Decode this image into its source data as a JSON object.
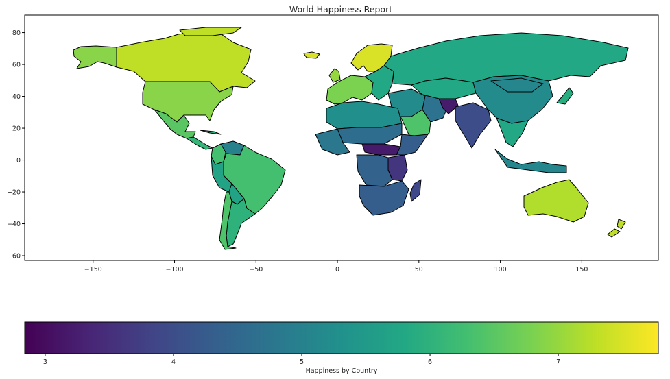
{
  "title": "World Happiness Report",
  "map": {
    "x_ticks": [
      -150,
      -100,
      -50,
      0,
      50,
      100,
      150
    ],
    "x_tick_labels": [
      "−150",
      "−100",
      "−50",
      "0",
      "50",
      "100",
      "150"
    ],
    "y_ticks": [
      80,
      60,
      40,
      20,
      0,
      -20,
      -40,
      -60
    ],
    "y_tick_labels": [
      "80",
      "60",
      "40",
      "20",
      "0",
      "−20",
      "−40",
      "−60"
    ],
    "xlim": [
      -192,
      197
    ],
    "ylim": [
      -63,
      91
    ]
  },
  "colorbar": {
    "label": "Happiness by Country",
    "colormap": "viridis",
    "range": [
      2.84,
      7.78
    ],
    "ticks": [
      3,
      4,
      5,
      6,
      7
    ],
    "tick_labels": [
      "3",
      "4",
      "5",
      "6",
      "7"
    ]
  },
  "regions": [
    {
      "id": "alaska",
      "value": 6.9
    },
    {
      "id": "canada",
      "value": 7.3
    },
    {
      "id": "greenland",
      "value": 7.4
    },
    {
      "id": "iceland",
      "value": 7.5
    },
    {
      "id": "usa",
      "value": 6.9
    },
    {
      "id": "mexico",
      "value": 6.5
    },
    {
      "id": "cuba",
      "value": 6.0
    },
    {
      "id": "central-america",
      "value": 6.1
    },
    {
      "id": "colombia",
      "value": 6.3
    },
    {
      "id": "venezuela",
      "value": 5.0
    },
    {
      "id": "brazil",
      "value": 6.3
    },
    {
      "id": "peru",
      "value": 5.7
    },
    {
      "id": "bolivia",
      "value": 5.7
    },
    {
      "id": "argentina",
      "value": 6.0
    },
    {
      "id": "chile",
      "value": 6.4
    },
    {
      "id": "scandinavia",
      "value": 7.5
    },
    {
      "id": "uk",
      "value": 7.0
    },
    {
      "id": "western-europe",
      "value": 6.8
    },
    {
      "id": "eastern-europe",
      "value": 5.8
    },
    {
      "id": "russia",
      "value": 5.8
    },
    {
      "id": "kazakhstan",
      "value": 5.8
    },
    {
      "id": "middle-east",
      "value": 5.2
    },
    {
      "id": "arabia",
      "value": 6.4
    },
    {
      "id": "iran",
      "value": 4.7
    },
    {
      "id": "afghanistan",
      "value": 3.2
    },
    {
      "id": "india",
      "value": 4.0
    },
    {
      "id": "china",
      "value": 5.2
    },
    {
      "id": "mongolia",
      "value": 5.1
    },
    {
      "id": "se-asia",
      "value": 5.8
    },
    {
      "id": "japan",
      "value": 5.9
    },
    {
      "id": "indonesia",
      "value": 5.1
    },
    {
      "id": "north-africa",
      "value": 5.3
    },
    {
      "id": "sahel",
      "value": 4.6
    },
    {
      "id": "west-africa",
      "value": 4.8
    },
    {
      "id": "central-africa",
      "value": 3.2
    },
    {
      "id": "horn-of-africa",
      "value": 4.3
    },
    {
      "id": "east-africa",
      "value": 3.6
    },
    {
      "id": "congo",
      "value": 4.4
    },
    {
      "id": "southern-africa",
      "value": 4.3
    },
    {
      "id": "madagascar",
      "value": 3.9
    },
    {
      "id": "australia",
      "value": 7.2
    },
    {
      "id": "new-zealand",
      "value": 7.3
    }
  ]
}
